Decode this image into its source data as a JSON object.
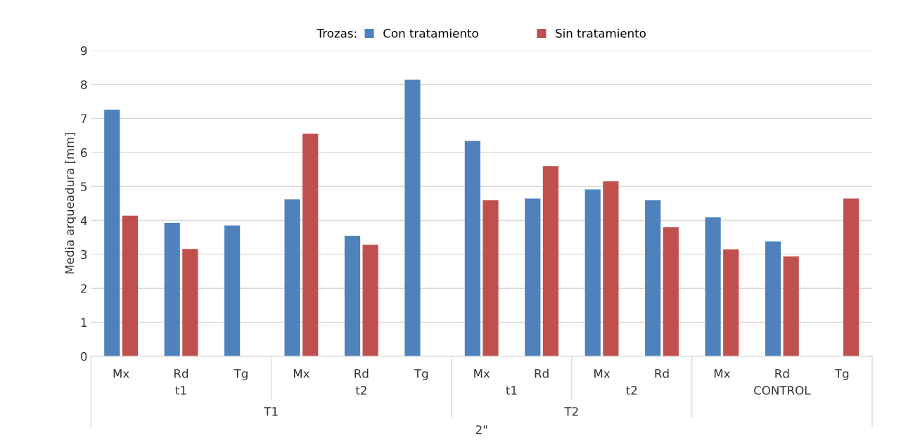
{
  "chart_data": {
    "type": "bar",
    "categories": [
      "Mx",
      "Rd",
      "Tg",
      "Mx",
      "Rd",
      "Tg",
      "Mx",
      "Rd",
      "Mx",
      "Rd",
      "Mx",
      "Rd",
      "Tg"
    ],
    "series": [
      {
        "name": "Con tratamiento",
        "color": "#4f81bd",
        "values": [
          7.26,
          3.93,
          3.85,
          4.62,
          3.54,
          8.14,
          6.34,
          4.64,
          4.91,
          4.59,
          4.09,
          3.38,
          null
        ]
      },
      {
        "name": "Sin tratamiento",
        "color": "#c0504d",
        "values": [
          4.14,
          3.16,
          null,
          6.55,
          3.28,
          null,
          4.59,
          5.6,
          5.15,
          3.8,
          3.15,
          2.94,
          4.64
        ]
      }
    ],
    "ylabel": "Media arqueadura [mm]",
    "legend_title": "Trozas:",
    "legend": "top",
    "annotations": [
      "t1",
      "t2",
      "t1",
      "t2",
      "CONTROL",
      "T1",
      "T2",
      "2\""
    ],
    "ylim": [
      0,
      9
    ],
    "yticks": [
      0,
      1,
      2,
      3,
      4,
      5,
      6,
      7,
      8,
      9
    ],
    "grid": "y"
  }
}
